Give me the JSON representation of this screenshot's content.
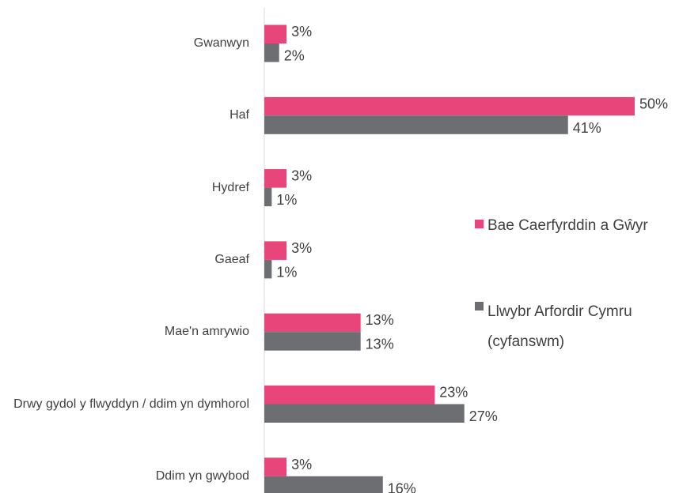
{
  "chart_data": {
    "type": "hbar",
    "categories": [
      "Gwanwyn",
      "Haf",
      "Hydref",
      "Gaeaf",
      "Mae'n amrywio",
      "Drwy gydol y flwyddyn / ddim yn dymhorol",
      "Ddim yn gwybod"
    ],
    "series": [
      {
        "name": "Bae Caerfyrddin a Gŵyr",
        "color": "#e8457a",
        "values": [
          3,
          50,
          3,
          3,
          13,
          23,
          3
        ],
        "value_labels": [
          "3%",
          "50%",
          "3%",
          "3%",
          "13%",
          "23%",
          "3%"
        ]
      },
      {
        "name": "Llwybr Arfordir Cymru (cyfanswm)",
        "color": "#6d6e71",
        "values": [
          2,
          41,
          1,
          1,
          13,
          27,
          16
        ],
        "value_labels": [
          "2%",
          "41%",
          "1%",
          "1%",
          "13%",
          "27%",
          "16%"
        ]
      }
    ],
    "xlim": [
      0,
      50
    ],
    "legend": "right"
  }
}
